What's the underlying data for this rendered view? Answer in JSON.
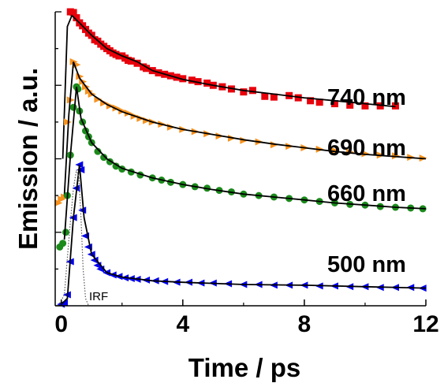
{
  "chart_data": {
    "type": "scatter",
    "title": "",
    "xlabel": "Time / ps",
    "ylabel": "Emission / a.u.",
    "xlim": [
      -0.2,
      12
    ],
    "x_ticks": [
      0,
      4,
      8,
      12
    ],
    "x_tick_labels": [
      "0",
      "4",
      "8",
      "12"
    ],
    "y_tick_labels_shown": false,
    "grid": false,
    "legend": "inline labels at right",
    "series": [
      {
        "name": "740 nm",
        "label": "740 nm",
        "color": "#e8000b",
        "marker": "square",
        "points": [
          [
            0.3,
            4.0
          ],
          [
            0.4,
            3.99
          ],
          [
            0.5,
            3.92
          ],
          [
            0.6,
            3.85
          ],
          [
            0.7,
            3.81
          ],
          [
            0.8,
            3.76
          ],
          [
            0.9,
            3.71
          ],
          [
            1.0,
            3.68
          ],
          [
            1.1,
            3.62
          ],
          [
            1.2,
            3.6
          ],
          [
            1.3,
            3.56
          ],
          [
            1.4,
            3.53
          ],
          [
            1.5,
            3.5
          ],
          [
            1.6,
            3.47
          ],
          [
            1.7,
            3.44
          ],
          [
            1.8,
            3.42
          ],
          [
            1.9,
            3.4
          ],
          [
            2.0,
            3.4
          ],
          [
            2.1,
            3.37
          ],
          [
            2.2,
            3.34
          ],
          [
            2.3,
            3.33
          ],
          [
            2.5,
            3.3
          ],
          [
            2.7,
            3.25
          ],
          [
            2.8,
            3.23
          ],
          [
            3.0,
            3.2
          ],
          [
            3.2,
            3.17
          ],
          [
            3.4,
            3.15
          ],
          [
            3.6,
            3.13
          ],
          [
            3.8,
            3.11
          ],
          [
            4.0,
            3.09
          ],
          [
            4.3,
            3.07
          ],
          [
            4.5,
            3.05
          ],
          [
            4.8,
            3.03
          ],
          [
            5.0,
            3.0
          ],
          [
            5.3,
            2.98
          ],
          [
            5.6,
            2.95
          ],
          [
            6.0,
            2.91
          ],
          [
            6.3,
            2.93
          ],
          [
            6.7,
            2.85
          ],
          [
            7.0,
            2.84
          ],
          [
            7.5,
            2.86
          ],
          [
            7.8,
            2.83
          ],
          [
            8.2,
            2.79
          ],
          [
            8.5,
            2.77
          ],
          [
            9.0,
            2.75
          ],
          [
            9.5,
            2.73
          ],
          [
            10.0,
            2.72
          ],
          [
            10.5,
            2.72
          ],
          [
            11.0,
            2.72
          ]
        ],
        "fit": [
          [
            0.05,
            2.0
          ],
          [
            0.2,
            3.8
          ],
          [
            0.35,
            3.95
          ],
          [
            0.6,
            3.85
          ],
          [
            1.0,
            3.68
          ],
          [
            1.5,
            3.5
          ],
          [
            2.0,
            3.4
          ],
          [
            2.5,
            3.32
          ],
          [
            3.0,
            3.2
          ],
          [
            4.0,
            3.08
          ],
          [
            5.0,
            3.0
          ],
          [
            6.0,
            2.93
          ],
          [
            7.0,
            2.88
          ],
          [
            8.0,
            2.83
          ],
          [
            9.0,
            2.79
          ],
          [
            10.0,
            2.75
          ],
          [
            11.0,
            2.71
          ]
        ]
      },
      {
        "name": "690 nm",
        "label": "690 nm",
        "color": "#f7921e",
        "marker": "triangle-right",
        "points": [
          [
            -0.1,
            1.4
          ],
          [
            0.0,
            1.45
          ],
          [
            0.1,
            1.48
          ],
          [
            0.2,
            2.5
          ],
          [
            0.3,
            2.8
          ],
          [
            0.4,
            3.32
          ],
          [
            0.5,
            3.28
          ],
          [
            0.6,
            3.12
          ],
          [
            0.7,
            3.05
          ],
          [
            0.8,
            2.98
          ],
          [
            0.9,
            2.92
          ],
          [
            1.0,
            2.88
          ],
          [
            1.2,
            2.81
          ],
          [
            1.4,
            2.76
          ],
          [
            1.6,
            2.72
          ],
          [
            1.8,
            2.69
          ],
          [
            2.0,
            2.65
          ],
          [
            2.2,
            2.62
          ],
          [
            2.4,
            2.58
          ],
          [
            2.6,
            2.55
          ],
          [
            2.8,
            2.52
          ],
          [
            3.0,
            2.5
          ],
          [
            3.3,
            2.47
          ],
          [
            3.6,
            2.43
          ],
          [
            4.0,
            2.4
          ],
          [
            4.4,
            2.37
          ],
          [
            4.8,
            2.34
          ],
          [
            5.2,
            2.31
          ],
          [
            5.6,
            2.28
          ],
          [
            6.0,
            2.25
          ],
          [
            6.5,
            2.23
          ],
          [
            7.0,
            2.19
          ],
          [
            7.5,
            2.17
          ],
          [
            8.0,
            2.15
          ],
          [
            8.5,
            2.13
          ],
          [
            9.0,
            2.11
          ],
          [
            9.5,
            2.09
          ],
          [
            10.0,
            2.07
          ],
          [
            10.5,
            2.05
          ],
          [
            11.0,
            2.04
          ],
          [
            11.5,
            2.02
          ],
          [
            11.9,
            2.01
          ]
        ],
        "fit": [
          [
            0.1,
            1.5
          ],
          [
            0.25,
            2.6
          ],
          [
            0.4,
            3.32
          ],
          [
            0.6,
            3.1
          ],
          [
            1.0,
            2.88
          ],
          [
            1.5,
            2.74
          ],
          [
            2.0,
            2.64
          ],
          [
            3.0,
            2.5
          ],
          [
            4.0,
            2.4
          ],
          [
            5.0,
            2.33
          ],
          [
            6.0,
            2.26
          ],
          [
            7.0,
            2.2
          ],
          [
            8.0,
            2.15
          ],
          [
            9.0,
            2.1
          ],
          [
            10.0,
            2.06
          ],
          [
            11.0,
            2.03
          ],
          [
            12.0,
            2.0
          ]
        ]
      },
      {
        "name": "660 nm",
        "label": "660 nm",
        "color": "#1b8a1b",
        "marker": "circle",
        "points": [
          [
            -0.05,
            0.8
          ],
          [
            0.05,
            0.85
          ],
          [
            0.15,
            1.0
          ],
          [
            0.2,
            1.5
          ],
          [
            0.3,
            2.05
          ],
          [
            0.4,
            2.7
          ],
          [
            0.5,
            2.98
          ],
          [
            0.55,
            2.95
          ],
          [
            0.6,
            2.65
          ],
          [
            0.7,
            2.5
          ],
          [
            0.8,
            2.38
          ],
          [
            0.9,
            2.3
          ],
          [
            1.0,
            2.22
          ],
          [
            1.2,
            2.1
          ],
          [
            1.4,
            2.02
          ],
          [
            1.6,
            1.96
          ],
          [
            1.8,
            1.9
          ],
          [
            2.0,
            1.86
          ],
          [
            2.3,
            1.82
          ],
          [
            2.6,
            1.78
          ],
          [
            3.0,
            1.74
          ],
          [
            3.3,
            1.71
          ],
          [
            3.6,
            1.68
          ],
          [
            4.0,
            1.65
          ],
          [
            4.4,
            1.62
          ],
          [
            4.8,
            1.6
          ],
          [
            5.2,
            1.57
          ],
          [
            5.6,
            1.55
          ],
          [
            6.0,
            1.52
          ],
          [
            6.5,
            1.5
          ],
          [
            7.0,
            1.48
          ],
          [
            7.5,
            1.46
          ],
          [
            8.0,
            1.44
          ],
          [
            8.5,
            1.42
          ],
          [
            9.0,
            1.4
          ],
          [
            9.5,
            1.38
          ],
          [
            10.0,
            1.37
          ],
          [
            10.5,
            1.35
          ],
          [
            11.0,
            1.34
          ],
          [
            11.5,
            1.33
          ],
          [
            11.9,
            1.32
          ]
        ],
        "fit": [
          [
            0.1,
            0.9
          ],
          [
            0.3,
            2.05
          ],
          [
            0.5,
            2.98
          ],
          [
            0.65,
            2.55
          ],
          [
            1.0,
            2.22
          ],
          [
            1.5,
            2.0
          ],
          [
            2.0,
            1.87
          ],
          [
            3.0,
            1.74
          ],
          [
            4.0,
            1.65
          ],
          [
            5.0,
            1.58
          ],
          [
            6.0,
            1.52
          ],
          [
            7.0,
            1.48
          ],
          [
            8.0,
            1.44
          ],
          [
            9.0,
            1.4
          ],
          [
            10.0,
            1.37
          ],
          [
            11.0,
            1.34
          ],
          [
            12.0,
            1.32
          ]
        ]
      },
      {
        "name": "500 nm",
        "label": "500 nm",
        "color": "#0000ee",
        "marker": "triangle-left",
        "points": [
          [
            0.0,
            0.02
          ],
          [
            0.1,
            0.04
          ],
          [
            0.2,
            0.15
          ],
          [
            0.3,
            0.6
          ],
          [
            0.4,
            1.2
          ],
          [
            0.5,
            1.6
          ],
          [
            0.6,
            1.92
          ],
          [
            0.65,
            1.85
          ],
          [
            0.7,
            1.3
          ],
          [
            0.8,
            0.95
          ],
          [
            0.9,
            0.8
          ],
          [
            1.0,
            0.7
          ],
          [
            1.1,
            0.62
          ],
          [
            1.2,
            0.55
          ],
          [
            1.3,
            0.5
          ],
          [
            1.5,
            0.45
          ],
          [
            1.7,
            0.42
          ],
          [
            1.9,
            0.4
          ],
          [
            2.1,
            0.38
          ],
          [
            2.3,
            0.37
          ],
          [
            2.5,
            0.36
          ],
          [
            2.8,
            0.35
          ],
          [
            3.1,
            0.34
          ],
          [
            3.4,
            0.33
          ],
          [
            3.8,
            0.32
          ],
          [
            4.2,
            0.32
          ],
          [
            4.6,
            0.31
          ],
          [
            5.0,
            0.31
          ],
          [
            5.5,
            0.3
          ],
          [
            6.0,
            0.29
          ],
          [
            6.5,
            0.29
          ],
          [
            7.0,
            0.28
          ],
          [
            7.5,
            0.28
          ],
          [
            8.0,
            0.28
          ],
          [
            8.5,
            0.27
          ],
          [
            9.0,
            0.27
          ],
          [
            9.5,
            0.26
          ],
          [
            10.0,
            0.26
          ],
          [
            10.5,
            0.25
          ],
          [
            11.0,
            0.25
          ],
          [
            11.5,
            0.25
          ],
          [
            11.9,
            0.24
          ]
        ],
        "fit": [
          [
            0.0,
            0.02
          ],
          [
            0.2,
            0.1
          ],
          [
            0.4,
            1.2
          ],
          [
            0.6,
            1.92
          ],
          [
            0.75,
            1.2
          ],
          [
            1.0,
            0.7
          ],
          [
            1.5,
            0.45
          ],
          [
            2.0,
            0.39
          ],
          [
            3.0,
            0.34
          ],
          [
            4.0,
            0.32
          ],
          [
            6.0,
            0.29
          ],
          [
            8.0,
            0.28
          ],
          [
            10.0,
            0.26
          ],
          [
            12.0,
            0.24
          ]
        ]
      }
    ],
    "irf": {
      "label": "IRF",
      "style": "dotted",
      "color": "#555555",
      "points": [
        [
          -0.1,
          0.0
        ],
        [
          0.1,
          0.15
        ],
        [
          0.25,
          0.9
        ],
        [
          0.4,
          1.6
        ],
        [
          0.5,
          1.85
        ],
        [
          0.58,
          1.75
        ],
        [
          0.65,
          1.2
        ],
        [
          0.72,
          0.5
        ],
        [
          0.8,
          0.1
        ],
        [
          0.9,
          0.0
        ]
      ]
    }
  }
}
